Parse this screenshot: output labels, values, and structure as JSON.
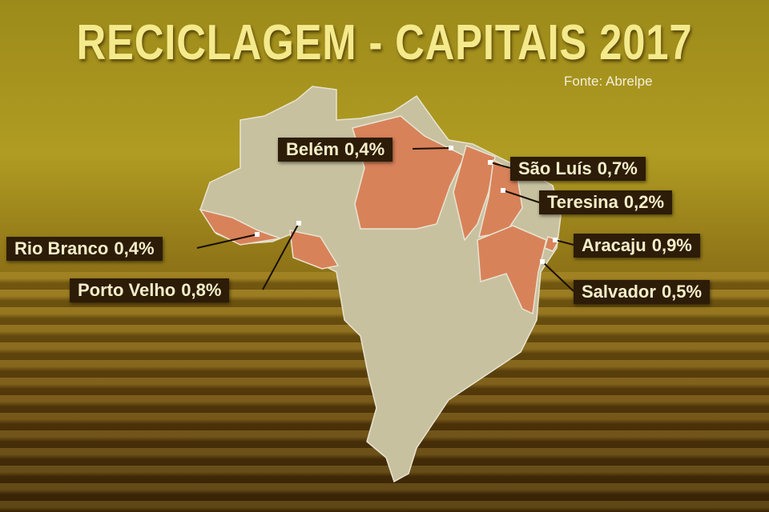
{
  "title": "RECICLAGEM - CAPITAIS 2017",
  "source": "Fonte: Abrelpe",
  "labels": [
    {
      "city": "Belém",
      "value": "0,4%"
    },
    {
      "city": "São Luís",
      "value": "0,7%"
    },
    {
      "city": "Teresina",
      "value": "0,2%"
    },
    {
      "city": "Aracaju",
      "value": "0,9%"
    },
    {
      "city": "Salvador",
      "value": "0,5%"
    },
    {
      "city": "Rio Branco",
      "value": "0,4%"
    },
    {
      "city": "Porto Velho",
      "value": "0,8%"
    }
  ]
}
